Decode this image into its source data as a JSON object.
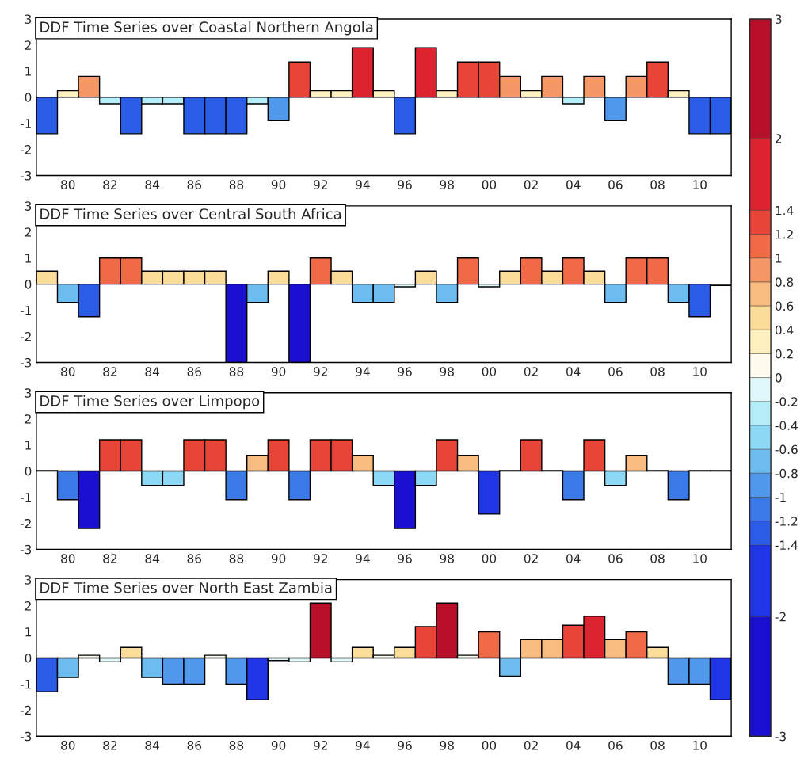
{
  "chart_data": [
    {
      "type": "bar",
      "title": "DDF Time Series over Coastal Northern Angola",
      "x": [
        1979,
        1980,
        1981,
        1982,
        1983,
        1984,
        1985,
        1986,
        1987,
        1988,
        1989,
        1990,
        1991,
        1992,
        1993,
        1994,
        1995,
        1996,
        1997,
        1998,
        1999,
        2000,
        2001,
        2002,
        2003,
        2004,
        2005,
        2006,
        2007,
        2008,
        2009,
        2010,
        2011
      ],
      "values": [
        -1.4,
        0.25,
        0.8,
        -0.25,
        -1.4,
        -0.25,
        -0.25,
        -1.4,
        -1.4,
        -1.4,
        -0.25,
        -0.9,
        1.35,
        0.25,
        0.25,
        1.9,
        0.25,
        -1.4,
        1.9,
        0.25,
        1.35,
        1.35,
        0.8,
        0.25,
        0.8,
        -0.25,
        0.8,
        -0.9,
        0.8,
        1.35,
        0.25,
        -1.4,
        -1.4
      ],
      "xlim": [
        1978.5,
        2011.5
      ],
      "ylim": [
        -3,
        3
      ],
      "yticks": [
        -3,
        -2,
        -1,
        0,
        1,
        2,
        3
      ],
      "xticks": [
        {
          "value": 1980,
          "label": "80"
        },
        {
          "value": 1982,
          "label": "82"
        },
        {
          "value": 1984,
          "label": "84"
        },
        {
          "value": 1986,
          "label": "86"
        },
        {
          "value": 1988,
          "label": "88"
        },
        {
          "value": 1990,
          "label": "90"
        },
        {
          "value": 1992,
          "label": "92"
        },
        {
          "value": 1994,
          "label": "94"
        },
        {
          "value": 1996,
          "label": "96"
        },
        {
          "value": 1998,
          "label": "98"
        },
        {
          "value": 2000,
          "label": "00"
        },
        {
          "value": 2002,
          "label": "02"
        },
        {
          "value": 2004,
          "label": "04"
        },
        {
          "value": 2006,
          "label": "06"
        },
        {
          "value": 2008,
          "label": "08"
        },
        {
          "value": 2010,
          "label": "10"
        }
      ],
      "clim": [
        -3,
        3
      ],
      "cticks": [
        -3,
        -2,
        -1.4,
        -1.2,
        -1,
        -0.8,
        -0.6,
        -0.4,
        -0.2,
        0,
        0.2,
        0.4,
        0.6,
        0.8,
        1,
        1.2,
        1.4,
        2,
        3
      ]
    },
    {
      "type": "bar",
      "title": "DDF Time Series over Central South Africa",
      "x": [
        1979,
        1980,
        1981,
        1982,
        1983,
        1984,
        1985,
        1986,
        1987,
        1988,
        1989,
        1990,
        1991,
        1992,
        1993,
        1994,
        1995,
        1996,
        1997,
        1998,
        1999,
        2000,
        2001,
        2002,
        2003,
        2004,
        2005,
        2006,
        2007,
        2008,
        2009,
        2010,
        2011
      ],
      "values": [
        0.5,
        -0.7,
        -1.25,
        1.0,
        1.0,
        0.5,
        0.5,
        0.5,
        0.5,
        -3,
        -0.7,
        0.5,
        -3,
        1.0,
        0.5,
        -0.7,
        -0.7,
        -0.1,
        0.5,
        -0.7,
        1.0,
        -0.1,
        0.5,
        1.0,
        0.5,
        1.0,
        0.5,
        -0.7,
        1.0,
        1.0,
        -0.7,
        -1.25,
        -0.05
      ],
      "xlim": [
        1978.5,
        2011.5
      ],
      "ylim": [
        -3,
        3
      ],
      "yticks": [
        -3,
        -2,
        -1,
        0,
        1,
        2,
        3
      ],
      "xticks": [
        {
          "value": 1980,
          "label": "80"
        },
        {
          "value": 1982,
          "label": "82"
        },
        {
          "value": 1984,
          "label": "84"
        },
        {
          "value": 1986,
          "label": "86"
        },
        {
          "value": 1988,
          "label": "88"
        },
        {
          "value": 1990,
          "label": "90"
        },
        {
          "value": 1992,
          "label": "92"
        },
        {
          "value": 1994,
          "label": "94"
        },
        {
          "value": 1996,
          "label": "96"
        },
        {
          "value": 1998,
          "label": "98"
        },
        {
          "value": 2000,
          "label": "00"
        },
        {
          "value": 2002,
          "label": "02"
        },
        {
          "value": 2004,
          "label": "04"
        },
        {
          "value": 2006,
          "label": "06"
        },
        {
          "value": 2008,
          "label": "08"
        },
        {
          "value": 2010,
          "label": "10"
        }
      ]
    },
    {
      "type": "bar",
      "title": "DDF Time Series over Limpopo",
      "x": [
        1979,
        1980,
        1981,
        1982,
        1983,
        1984,
        1985,
        1986,
        1987,
        1988,
        1989,
        1990,
        1991,
        1992,
        1993,
        1994,
        1995,
        1996,
        1997,
        1998,
        1999,
        2000,
        2001,
        2002,
        2003,
        2004,
        2005,
        2006,
        2007,
        2008,
        2009,
        2010,
        2011
      ],
      "values": [
        0.02,
        -1.1,
        -2.2,
        1.2,
        1.2,
        -0.55,
        -0.55,
        1.2,
        1.2,
        -1.1,
        0.6,
        1.2,
        -1.1,
        1.2,
        1.2,
        0.6,
        -0.55,
        -2.2,
        -0.55,
        1.2,
        0.6,
        -1.65,
        0.02,
        1.2,
        0.02,
        -1.1,
        1.2,
        -0.55,
        0.6,
        0.02,
        -1.1,
        0.02,
        0.02
      ],
      "xlim": [
        1978.5,
        2011.5
      ],
      "ylim": [
        -3,
        3
      ],
      "yticks": [
        -3,
        -2,
        -1,
        0,
        1,
        2,
        3
      ],
      "xticks": [
        {
          "value": 1980,
          "label": "80"
        },
        {
          "value": 1982,
          "label": "82"
        },
        {
          "value": 1984,
          "label": "84"
        },
        {
          "value": 1986,
          "label": "86"
        },
        {
          "value": 1988,
          "label": "88"
        },
        {
          "value": 1990,
          "label": "90"
        },
        {
          "value": 1992,
          "label": "92"
        },
        {
          "value": 1994,
          "label": "94"
        },
        {
          "value": 1996,
          "label": "96"
        },
        {
          "value": 1998,
          "label": "98"
        },
        {
          "value": 2000,
          "label": "00"
        },
        {
          "value": 2002,
          "label": "02"
        },
        {
          "value": 2004,
          "label": "04"
        },
        {
          "value": 2006,
          "label": "06"
        },
        {
          "value": 2008,
          "label": "08"
        },
        {
          "value": 2010,
          "label": "10"
        }
      ]
    },
    {
      "type": "bar",
      "title": "DDF Time Series over North East Zambia",
      "x": [
        1979,
        1980,
        1981,
        1982,
        1983,
        1984,
        1985,
        1986,
        1987,
        1988,
        1989,
        1990,
        1991,
        1992,
        1993,
        1994,
        1995,
        1996,
        1997,
        1998,
        1999,
        2000,
        2001,
        2002,
        2003,
        2004,
        2005,
        2006,
        2007,
        2008,
        2009,
        2010,
        2011
      ],
      "values": [
        -1.3,
        -0.75,
        0.1,
        -0.15,
        0.4,
        -0.75,
        -1.0,
        -1.0,
        0.1,
        -1.0,
        -1.6,
        -0.1,
        -0.15,
        2.1,
        -0.15,
        0.4,
        0.1,
        0.4,
        1.2,
        2.1,
        0.1,
        1.0,
        -0.7,
        0.7,
        0.7,
        1.25,
        1.6,
        0.7,
        1.0,
        0.4,
        -1.0,
        -1.0,
        -1.6
      ],
      "xlim": [
        1978.5,
        2011.5
      ],
      "ylim": [
        -3,
        3
      ],
      "yticks": [
        -3,
        -2,
        -1,
        0,
        1,
        2,
        3
      ],
      "xticks": [
        {
          "value": 1980,
          "label": "80"
        },
        {
          "value": 1982,
          "label": "82"
        },
        {
          "value": 1984,
          "label": "84"
        },
        {
          "value": 1986,
          "label": "86"
        },
        {
          "value": 1988,
          "label": "88"
        },
        {
          "value": 1990,
          "label": "90"
        },
        {
          "value": 1992,
          "label": "92"
        },
        {
          "value": 1994,
          "label": "94"
        },
        {
          "value": 1996,
          "label": "96"
        },
        {
          "value": 1998,
          "label": "98"
        },
        {
          "value": 2000,
          "label": "00"
        },
        {
          "value": 2002,
          "label": "02"
        },
        {
          "value": 2004,
          "label": "04"
        },
        {
          "value": 2006,
          "label": "06"
        },
        {
          "value": 2008,
          "label": "08"
        },
        {
          "value": 2010,
          "label": "10"
        }
      ]
    }
  ]
}
